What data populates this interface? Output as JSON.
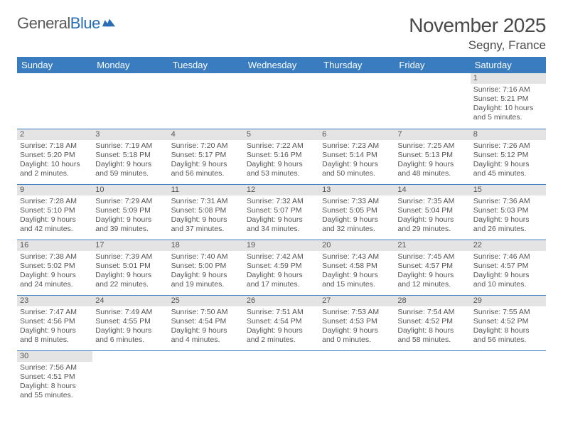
{
  "logo": {
    "text1": "General",
    "text2": "Blue",
    "mark_color": "#2a6db5"
  },
  "title": {
    "month": "November 2025",
    "location": "Segny, France"
  },
  "colors": {
    "header_bg": "#3a7cc0",
    "header_text": "#ffffff",
    "daybar_bg": "#e4e4e4",
    "cell_border": "#3a7cc0",
    "text": "#555555",
    "title_text": "#4a4a4a"
  },
  "typography": {
    "body_fontsize": 10.5,
    "header_fontsize": 13,
    "title_fontsize": 28,
    "location_fontsize": 17
  },
  "daysOfWeek": [
    "Sunday",
    "Monday",
    "Tuesday",
    "Wednesday",
    "Thursday",
    "Friday",
    "Saturday"
  ],
  "weeks": [
    [
      null,
      null,
      null,
      null,
      null,
      null,
      {
        "n": "1",
        "sunrise": "7:16 AM",
        "sunset": "5:21 PM",
        "daylight": "10 hours and 5 minutes."
      }
    ],
    [
      {
        "n": "2",
        "sunrise": "7:18 AM",
        "sunset": "5:20 PM",
        "daylight": "10 hours and 2 minutes."
      },
      {
        "n": "3",
        "sunrise": "7:19 AM",
        "sunset": "5:18 PM",
        "daylight": "9 hours and 59 minutes."
      },
      {
        "n": "4",
        "sunrise": "7:20 AM",
        "sunset": "5:17 PM",
        "daylight": "9 hours and 56 minutes."
      },
      {
        "n": "5",
        "sunrise": "7:22 AM",
        "sunset": "5:16 PM",
        "daylight": "9 hours and 53 minutes."
      },
      {
        "n": "6",
        "sunrise": "7:23 AM",
        "sunset": "5:14 PM",
        "daylight": "9 hours and 50 minutes."
      },
      {
        "n": "7",
        "sunrise": "7:25 AM",
        "sunset": "5:13 PM",
        "daylight": "9 hours and 48 minutes."
      },
      {
        "n": "8",
        "sunrise": "7:26 AM",
        "sunset": "5:12 PM",
        "daylight": "9 hours and 45 minutes."
      }
    ],
    [
      {
        "n": "9",
        "sunrise": "7:28 AM",
        "sunset": "5:10 PM",
        "daylight": "9 hours and 42 minutes."
      },
      {
        "n": "10",
        "sunrise": "7:29 AM",
        "sunset": "5:09 PM",
        "daylight": "9 hours and 39 minutes."
      },
      {
        "n": "11",
        "sunrise": "7:31 AM",
        "sunset": "5:08 PM",
        "daylight": "9 hours and 37 minutes."
      },
      {
        "n": "12",
        "sunrise": "7:32 AM",
        "sunset": "5:07 PM",
        "daylight": "9 hours and 34 minutes."
      },
      {
        "n": "13",
        "sunrise": "7:33 AM",
        "sunset": "5:05 PM",
        "daylight": "9 hours and 32 minutes."
      },
      {
        "n": "14",
        "sunrise": "7:35 AM",
        "sunset": "5:04 PM",
        "daylight": "9 hours and 29 minutes."
      },
      {
        "n": "15",
        "sunrise": "7:36 AM",
        "sunset": "5:03 PM",
        "daylight": "9 hours and 26 minutes."
      }
    ],
    [
      {
        "n": "16",
        "sunrise": "7:38 AM",
        "sunset": "5:02 PM",
        "daylight": "9 hours and 24 minutes."
      },
      {
        "n": "17",
        "sunrise": "7:39 AM",
        "sunset": "5:01 PM",
        "daylight": "9 hours and 22 minutes."
      },
      {
        "n": "18",
        "sunrise": "7:40 AM",
        "sunset": "5:00 PM",
        "daylight": "9 hours and 19 minutes."
      },
      {
        "n": "19",
        "sunrise": "7:42 AM",
        "sunset": "4:59 PM",
        "daylight": "9 hours and 17 minutes."
      },
      {
        "n": "20",
        "sunrise": "7:43 AM",
        "sunset": "4:58 PM",
        "daylight": "9 hours and 15 minutes."
      },
      {
        "n": "21",
        "sunrise": "7:45 AM",
        "sunset": "4:57 PM",
        "daylight": "9 hours and 12 minutes."
      },
      {
        "n": "22",
        "sunrise": "7:46 AM",
        "sunset": "4:57 PM",
        "daylight": "9 hours and 10 minutes."
      }
    ],
    [
      {
        "n": "23",
        "sunrise": "7:47 AM",
        "sunset": "4:56 PM",
        "daylight": "9 hours and 8 minutes."
      },
      {
        "n": "24",
        "sunrise": "7:49 AM",
        "sunset": "4:55 PM",
        "daylight": "9 hours and 6 minutes."
      },
      {
        "n": "25",
        "sunrise": "7:50 AM",
        "sunset": "4:54 PM",
        "daylight": "9 hours and 4 minutes."
      },
      {
        "n": "26",
        "sunrise": "7:51 AM",
        "sunset": "4:54 PM",
        "daylight": "9 hours and 2 minutes."
      },
      {
        "n": "27",
        "sunrise": "7:53 AM",
        "sunset": "4:53 PM",
        "daylight": "9 hours and 0 minutes."
      },
      {
        "n": "28",
        "sunrise": "7:54 AM",
        "sunset": "4:52 PM",
        "daylight": "8 hours and 58 minutes."
      },
      {
        "n": "29",
        "sunrise": "7:55 AM",
        "sunset": "4:52 PM",
        "daylight": "8 hours and 56 minutes."
      }
    ],
    [
      {
        "n": "30",
        "sunrise": "7:56 AM",
        "sunset": "4:51 PM",
        "daylight": "8 hours and 55 minutes."
      },
      null,
      null,
      null,
      null,
      null,
      null
    ]
  ],
  "labels": {
    "sunrise": "Sunrise: ",
    "sunset": "Sunset: ",
    "daylight": "Daylight: "
  }
}
